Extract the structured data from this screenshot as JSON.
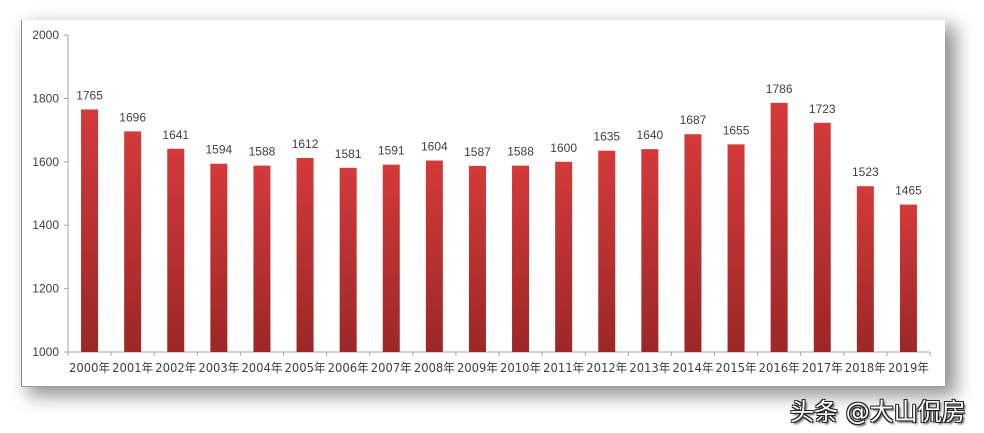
{
  "chart_data": {
    "type": "bar",
    "title": "",
    "xlabel": "",
    "ylabel": "",
    "categories": [
      "2000年",
      "2001年",
      "2002年",
      "2003年",
      "2004年",
      "2005年",
      "2006年",
      "2007年",
      "2008年",
      "2009年",
      "2010年",
      "2011年",
      "2012年",
      "2013年",
      "2014年",
      "2015年",
      "2016年",
      "2017年",
      "2018年",
      "2019年"
    ],
    "values": [
      1765,
      1696,
      1641,
      1594,
      1588,
      1612,
      1581,
      1591,
      1604,
      1587,
      1588,
      1600,
      1635,
      1640,
      1687,
      1655,
      1786,
      1723,
      1523,
      1465
    ],
    "ylim": [
      1000,
      2000
    ],
    "yticks": [
      1000,
      1200,
      1400,
      1600,
      1800,
      2000
    ],
    "grid": false,
    "legend": null,
    "data_labels": true,
    "bar_color_top": "#d43a3a",
    "bar_color_bottom": "#9c2727"
  },
  "watermark": "头条 @大山侃房"
}
